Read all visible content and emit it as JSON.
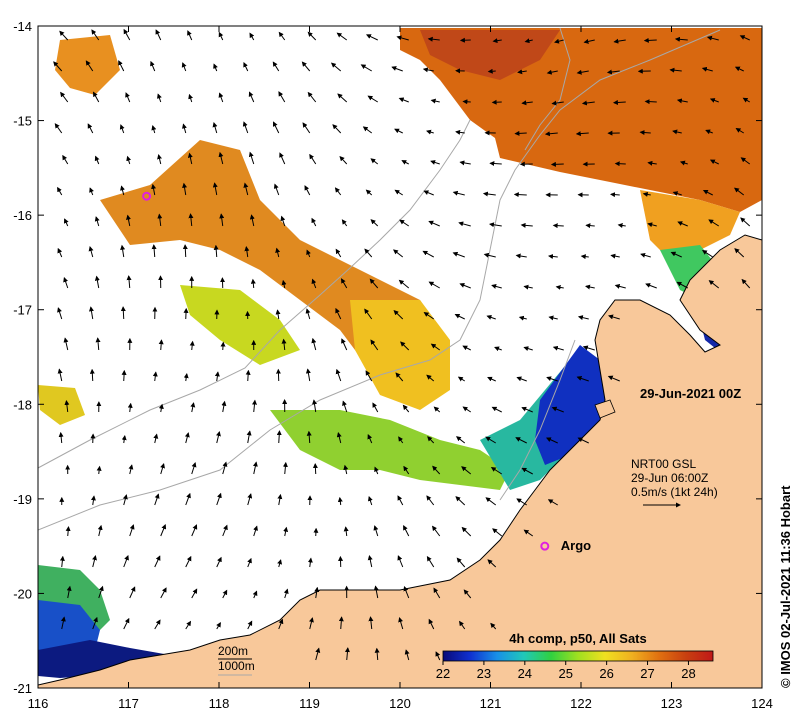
{
  "map": {
    "lon_range": [
      116,
      124
    ],
    "lat_range": [
      -21,
      -14
    ],
    "x_ticks": [
      116,
      117,
      118,
      119,
      120,
      121,
      122,
      123,
      124
    ],
    "y_ticks": [
      -14,
      -15,
      -16,
      -17,
      -18,
      -19,
      -20,
      -21
    ],
    "date_label": "29-Jun-2021 00Z",
    "credit": "© IMOS 02-Jul-2021 11:36 Hobart",
    "current_legend": {
      "line1": "NRT00 GSL",
      "line2": "29-Jun 06:00Z",
      "line3": "0.5m/s (1kt 24h)"
    },
    "isobaths": {
      "line1": "200m",
      "line2": "1000m"
    },
    "argo": {
      "label": "Argo",
      "lon": 121.6,
      "lat": -19.5
    },
    "argo_extra": {
      "lon": 117.2,
      "lat": -15.8
    },
    "colorbar": {
      "title": "4h comp, p50, All Sats",
      "ticks": [
        22,
        23,
        24,
        25,
        26,
        27,
        28
      ],
      "range": [
        22,
        28.6
      ],
      "colors": [
        "#0a0a78",
        "#1030d0",
        "#1890e8",
        "#20c8b8",
        "#30d040",
        "#a0e020",
        "#f0e020",
        "#f0b020",
        "#e07010",
        "#c84010",
        "#c01818"
      ]
    },
    "colors": {
      "land": "#f8c89a",
      "coast": "#000000",
      "isobath": "#a8a8a8"
    }
  }
}
